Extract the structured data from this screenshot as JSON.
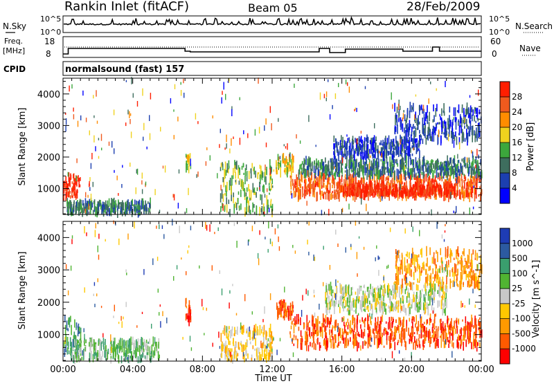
{
  "header": {
    "title": "Rankin Inlet (fitACF)",
    "beam": "Beam 05",
    "date": "28/Feb/2009"
  },
  "status_panels": {
    "nsky_label": "N.Sky",
    "nsky_ticks": [
      "10^5",
      "10^0"
    ],
    "nsearch_label": "N.Search",
    "nsearch_ticks": [
      "10^5",
      "10^0"
    ],
    "freq_label_1": "Freq.",
    "freq_label_2": "[MHz]",
    "freq_ticks": [
      "18",
      "8"
    ],
    "nave_label": "Nave",
    "nave_ticks": [
      "60",
      "0"
    ],
    "cpid_label": "CPID",
    "cpid_text": "normalsound (fast) 157"
  },
  "time_axis": {
    "label": "Time UT",
    "ticks": [
      "00:00",
      "04:00",
      "08:00",
      "12:00",
      "16:00",
      "20:00",
      "00:00"
    ],
    "hours": [
      0,
      4,
      8,
      12,
      16,
      20,
      24
    ]
  },
  "chart_data": [
    {
      "type": "heatmap",
      "name": "Power",
      "ylabel": "Slant Range [km]",
      "xlabel": "Time UT",
      "xlim": [
        0,
        24
      ],
      "ylim": [
        180,
        4500
      ],
      "yticks": [
        1000,
        2000,
        3000,
        4000
      ],
      "colorbar": {
        "label": "Power [dB]",
        "ticks": [
          "28",
          "24",
          "20",
          "16",
          "12",
          "8",
          "4"
        ],
        "colors": [
          "#0000ff",
          "#1c3fb0",
          "#3e6e5e",
          "#3ca73c",
          "#f0d21e",
          "#ff8c00",
          "#f05a1e",
          "#ff1e00"
        ]
      },
      "regions": [
        {
          "t0": 0.0,
          "t1": 1.0,
          "r0": 700,
          "r1": 1400,
          "level": 7
        },
        {
          "t0": 0.2,
          "t1": 5.0,
          "r0": 200,
          "r1": 550,
          "level": 2
        },
        {
          "t0": 7.0,
          "t1": 7.3,
          "r0": 1500,
          "r1": 2100,
          "level": 4
        },
        {
          "t0": 9.0,
          "t1": 12.0,
          "r0": 200,
          "r1": 1800,
          "level": 3
        },
        {
          "t0": 12.2,
          "t1": 13.2,
          "r0": 1500,
          "r1": 2000,
          "level": 4
        },
        {
          "t0": 13.0,
          "t1": 24.0,
          "r0": 700,
          "r1": 1400,
          "level": 6
        },
        {
          "t0": 16.0,
          "t1": 22.5,
          "r0": 800,
          "r1": 1100,
          "level": 7
        },
        {
          "t0": 13.5,
          "t1": 24.0,
          "r0": 1400,
          "r1": 1900,
          "level": 2
        },
        {
          "t0": 15.5,
          "t1": 20.5,
          "r0": 2000,
          "r1": 2600,
          "level": 1
        },
        {
          "t0": 19.0,
          "t1": 24.0,
          "r0": 2500,
          "r1": 3600,
          "level": 1
        }
      ]
    },
    {
      "type": "heatmap",
      "name": "Velocity",
      "ylabel": "Slant Range [km]",
      "xlabel": "Time UT",
      "xlim": [
        0,
        24
      ],
      "ylim": [
        180,
        4500
      ],
      "yticks": [
        1000,
        2000,
        3000,
        4000
      ],
      "colorbar": {
        "label": "Velocity [m s^-1]",
        "ticks": [
          "1000",
          "500",
          "100",
          "25",
          "-25",
          "-100",
          "-500",
          "-1000"
        ],
        "colors": [
          "#ff0000",
          "#ff5a00",
          "#ff9a00",
          "#ffc800",
          "#c8c8c8",
          "#50b432",
          "#3a9e6e",
          "#2c5aa0",
          "#1e3cb4"
        ]
      },
      "regions": [
        {
          "t0": 0.0,
          "t1": 1.0,
          "r0": 300,
          "r1": 1500,
          "level": 6
        },
        {
          "t0": 0.5,
          "t1": 5.5,
          "r0": 200,
          "r1": 800,
          "level": 5
        },
        {
          "t0": 7.0,
          "t1": 7.3,
          "r0": 1400,
          "r1": 2100,
          "level": 1
        },
        {
          "t0": 9.0,
          "t1": 12.0,
          "r0": 200,
          "r1": 1200,
          "level": 3
        },
        {
          "t0": 12.2,
          "t1": 13.2,
          "r0": 1500,
          "r1": 2000,
          "level": 1
        },
        {
          "t0": 13.0,
          "t1": 24.0,
          "r0": 600,
          "r1": 1500,
          "level": 1
        },
        {
          "t0": 15.0,
          "t1": 22.0,
          "r0": 1700,
          "r1": 2500,
          "level": 4
        },
        {
          "t0": 19.0,
          "t1": 24.0,
          "r0": 2500,
          "r1": 3600,
          "level": 2
        }
      ]
    }
  ]
}
